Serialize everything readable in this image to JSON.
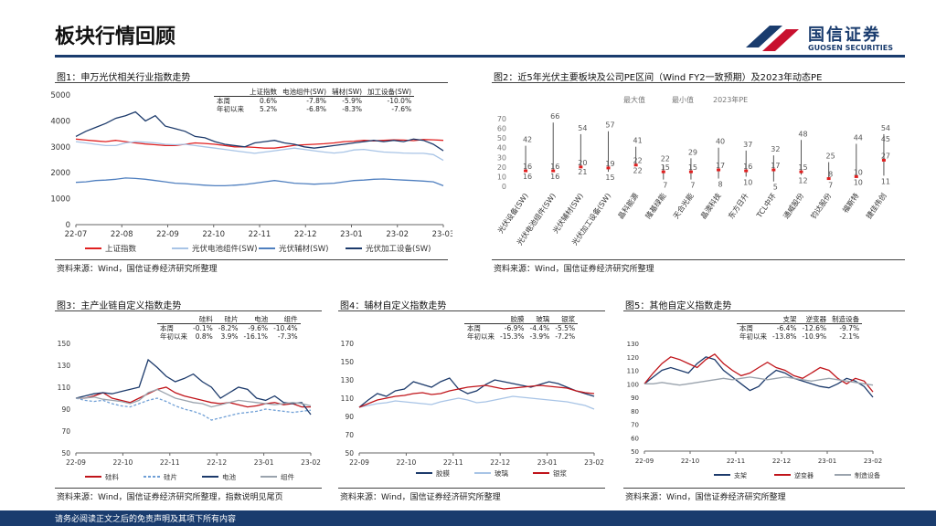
{
  "header": {
    "title": "板块行情回顾",
    "logo_cn": "国信证券",
    "logo_en": "GUOSEN SECURITIES"
  },
  "footer": {
    "text": "请务必阅读正文之后的免责声明及其项下所有内容"
  },
  "fig1": {
    "title": "图1：申万光伏相关行业指数走势",
    "source": "资料来源：Wind，国信证券经济研究所整理",
    "table": {
      "headers": [
        "上证指数",
        "电池组件(SW)",
        "辅材(SW)",
        "加工设备(SW)"
      ],
      "rows": [
        {
          "label": "本周",
          "values": [
            "0.6%",
            "-7.8%",
            "-5.9%",
            "-10.0%"
          ]
        },
        {
          "label": "年初以来",
          "values": [
            "5.2%",
            "-6.8%",
            "-8.3%",
            "-7.6%"
          ]
        }
      ]
    }
  },
  "fig2": {
    "title": "图2：近5年光伏主要板块及公司PE区间（Wind FY2一致预期）及2023年动态PE",
    "source": "资料来源：Wind，国信证券经济研究所整理",
    "legend": [
      "最大值",
      "最小值",
      "2023年PE"
    ]
  },
  "fig3": {
    "title": "图3：主产业链自定义指数走势",
    "source": "资料来源：Wind，国信证券经济研究所整理，指数说明见尾页",
    "table": {
      "headers": [
        "硅料",
        "硅片",
        "电池",
        "组件"
      ],
      "rows": [
        {
          "label": "本周",
          "values": [
            "-0.1%",
            "-8.2%",
            "-9.6%",
            "-10.4%"
          ]
        },
        {
          "label": "年初以来",
          "values": [
            "0.8%",
            "3.9%",
            "-16.1%",
            "-7.3%"
          ]
        }
      ]
    }
  },
  "fig4": {
    "title": "图4：辅材自定义指数走势",
    "source": "资料来源：Wind，国信证券经济研究所整理",
    "table": {
      "headers": [
        "胶膜",
        "玻璃",
        "银浆"
      ],
      "rows": [
        {
          "label": "本周",
          "values": [
            "-6.9%",
            "-4.4%",
            "-5.5%"
          ]
        },
        {
          "label": "年初以来",
          "values": [
            "-15.3%",
            "-3.9%",
            "-7.2%"
          ]
        }
      ]
    }
  },
  "fig5": {
    "title": "图5：其他自定义指数走势",
    "source": "资料来源：Wind，国信证券经济研究所整理",
    "table": {
      "headers": [
        "支架",
        "逆变器",
        "制造设备"
      ],
      "rows": [
        {
          "label": "本周",
          "values": [
            "-6.4%",
            "-12.6%",
            "-9.7%"
          ]
        },
        {
          "label": "年初以来",
          "values": [
            "-13.8%",
            "-10.9%",
            "-2.1%"
          ]
        }
      ]
    }
  },
  "chart_data": [
    {
      "id": "fig1",
      "type": "line",
      "x_ticks": [
        "22-07",
        "22-08",
        "22-09",
        "22-10",
        "22-11",
        "22-12",
        "23-01",
        "23-02",
        "23-03"
      ],
      "ylim": [
        0,
        5000
      ],
      "y_ticks": [
        0,
        1000,
        2000,
        3000,
        4000,
        5000
      ],
      "series": [
        {
          "name": "上证指数",
          "color": "#e02020",
          "values": [
            3300,
            3260,
            3230,
            3200,
            3250,
            3200,
            3150,
            3110,
            3080,
            3050,
            3050,
            3100,
            3150,
            3130,
            3100,
            3050,
            3000,
            3000,
            2980,
            2950,
            2950,
            3000,
            3060,
            3080,
            3100,
            3120,
            3150,
            3200,
            3220,
            3250,
            3230,
            3250,
            3270,
            3260,
            3240,
            3280,
            3270,
            3250
          ]
        },
        {
          "name": "光伏电池组件(SW)",
          "color": "#a8c4e6",
          "values": [
            3200,
            3150,
            3100,
            3050,
            3050,
            3150,
            3200,
            3180,
            3150,
            3100,
            3080,
            3100,
            3050,
            3000,
            2950,
            2900,
            2850,
            2800,
            2750,
            2800,
            2850,
            2900,
            2950,
            2900,
            2850,
            2800,
            2760,
            2800,
            2880,
            2900,
            2850,
            2800,
            2780,
            2760,
            2750,
            2750,
            2700,
            2480
          ]
        },
        {
          "name": "光伏辅材(SW)",
          "color": "#4f7fbf",
          "values": [
            1630,
            1650,
            1700,
            1720,
            1750,
            1800,
            1780,
            1750,
            1700,
            1650,
            1600,
            1580,
            1550,
            1520,
            1500,
            1500,
            1520,
            1550,
            1600,
            1650,
            1700,
            1650,
            1600,
            1580,
            1560,
            1580,
            1600,
            1650,
            1700,
            1720,
            1750,
            1760,
            1740,
            1720,
            1700,
            1680,
            1650,
            1500
          ]
        },
        {
          "name": "光伏加工设备(SW)",
          "color": "#1c3a6b",
          "values": [
            3400,
            3600,
            3750,
            3900,
            4100,
            4200,
            4350,
            4000,
            4200,
            3800,
            3700,
            3600,
            3400,
            3350,
            3200,
            3100,
            3050,
            3000,
            3150,
            3200,
            3250,
            3150,
            3100,
            3000,
            2950,
            3000,
            3050,
            3100,
            3150,
            3200,
            3250,
            3200,
            3250,
            3200,
            3300,
            3250,
            3100,
            2850
          ]
        }
      ]
    },
    {
      "id": "fig2",
      "type": "range",
      "ylim": [
        0,
        70
      ],
      "y_ticks": [
        0,
        10,
        20,
        30,
        40,
        50,
        60,
        70
      ],
      "categories": [
        "光伏设备(SW)",
        "光伏电池组件(SW)",
        "光伏辅材(SW)",
        "光伏加工设备(SW)",
        "晶科能源",
        "隆基绿能",
        "天合光能",
        "晶澳科技",
        "东方日升",
        "TCL中环",
        "通威股份",
        "钧达股份",
        "福斯特",
        "捷佳伟创"
      ],
      "max": [
        42,
        66,
        54,
        57,
        41,
        22,
        29,
        40,
        37,
        32,
        48,
        25,
        44,
        54
      ],
      "min": [
        16,
        16,
        21,
        15,
        22,
        7,
        7,
        8,
        10,
        5,
        12,
        7,
        10,
        11
      ],
      "pe2023": [
        16,
        16,
        20,
        19,
        22,
        15,
        15,
        17,
        16,
        17,
        15,
        8,
        10,
        27
      ],
      "extra_label": {
        "index": 13,
        "text": "45"
      }
    },
    {
      "id": "fig3",
      "type": "line",
      "x_ticks": [
        "22-09",
        "22-10",
        "22-11",
        "22-12",
        "23-01",
        "23-02"
      ],
      "ylim": [
        50,
        150
      ],
      "y_ticks": [
        50,
        70,
        90,
        110,
        130,
        150
      ],
      "series": [
        {
          "name": "硅料",
          "color": "#c0141a",
          "dash": "",
          "values": [
            100,
            100,
            102,
            105,
            100,
            98,
            96,
            100,
            104,
            108,
            110,
            105,
            102,
            100,
            98,
            96,
            95,
            96,
            94,
            92,
            93,
            95,
            96,
            94,
            95,
            92,
            92
          ]
        },
        {
          "name": "硅片",
          "color": "#6f9fd6",
          "dash": "3,2",
          "values": [
            100,
            98,
            97,
            98,
            95,
            93,
            92,
            95,
            98,
            100,
            97,
            93,
            90,
            88,
            85,
            80,
            82,
            84,
            86,
            87,
            88,
            90,
            89,
            88,
            87,
            88,
            89
          ]
        },
        {
          "name": "电池",
          "color": "#1c3a6b",
          "dash": "",
          "values": [
            100,
            102,
            104,
            105,
            104,
            106,
            108,
            110,
            135,
            128,
            120,
            115,
            118,
            122,
            115,
            110,
            100,
            105,
            110,
            108,
            100,
            98,
            102,
            96,
            95,
            96,
            85
          ]
        },
        {
          "name": "组件",
          "color": "#9aa3ad",
          "dash": "",
          "values": [
            100,
            100,
            101,
            99,
            98,
            97,
            95,
            98,
            105,
            108,
            104,
            100,
            98,
            96,
            95,
            92,
            94,
            96,
            98,
            97,
            96,
            95,
            94,
            95,
            96,
            95,
            93
          ]
        }
      ]
    },
    {
      "id": "fig4",
      "type": "line",
      "x_ticks": [
        "22-09",
        "22-10",
        "22-11",
        "22-12",
        "23-01",
        "23-02"
      ],
      "ylim": [
        50,
        170
      ],
      "y_ticks": [
        50,
        70,
        90,
        110,
        130,
        150,
        170
      ],
      "series": [
        {
          "name": "胶膜",
          "color": "#1c3a6b",
          "values": [
            100,
            108,
            115,
            112,
            118,
            120,
            128,
            125,
            122,
            128,
            132,
            120,
            115,
            118,
            125,
            130,
            128,
            126,
            124,
            122,
            125,
            128,
            126,
            122,
            118,
            115,
            112
          ]
        },
        {
          "name": "玻璃",
          "color": "#a8c4e6",
          "values": [
            100,
            102,
            104,
            105,
            107,
            106,
            105,
            104,
            103,
            106,
            108,
            110,
            108,
            105,
            106,
            108,
            110,
            112,
            111,
            110,
            109,
            108,
            107,
            106,
            104,
            102,
            98
          ]
        },
        {
          "name": "银浆",
          "color": "#c0141a",
          "values": [
            100,
            104,
            108,
            110,
            112,
            113,
            115,
            116,
            114,
            115,
            118,
            120,
            122,
            123,
            124,
            122,
            120,
            121,
            122,
            123,
            124,
            123,
            122,
            121,
            118,
            116,
            115
          ]
        }
      ]
    },
    {
      "id": "fig5",
      "type": "line",
      "x_ticks": [
        "22-09",
        "22-10",
        "22-11",
        "22-12",
        "23-01",
        "23-02"
      ],
      "ylim": [
        50,
        130
      ],
      "y_ticks": [
        50,
        60,
        70,
        80,
        90,
        100,
        110,
        120,
        130
      ],
      "series": [
        {
          "name": "支架",
          "color": "#1c3a6b",
          "values": [
            100,
            105,
            110,
            112,
            110,
            108,
            115,
            120,
            118,
            110,
            105,
            100,
            95,
            98,
            105,
            110,
            108,
            104,
            102,
            100,
            98,
            97,
            100,
            104,
            102,
            98,
            90
          ]
        },
        {
          "name": "逆变器",
          "color": "#c0141a",
          "values": [
            100,
            108,
            115,
            120,
            118,
            115,
            112,
            118,
            122,
            115,
            110,
            106,
            108,
            112,
            116,
            112,
            110,
            106,
            104,
            108,
            112,
            110,
            104,
            100,
            104,
            102,
            94
          ]
        },
        {
          "name": "制造设备",
          "color": "#9aa3ad",
          "values": [
            100,
            100,
            101,
            100,
            99,
            100,
            101,
            102,
            103,
            104,
            103,
            104,
            105,
            104,
            103,
            104,
            105,
            104,
            103,
            102,
            103,
            104,
            103,
            102,
            101,
            100,
            99
          ]
        }
      ]
    }
  ]
}
